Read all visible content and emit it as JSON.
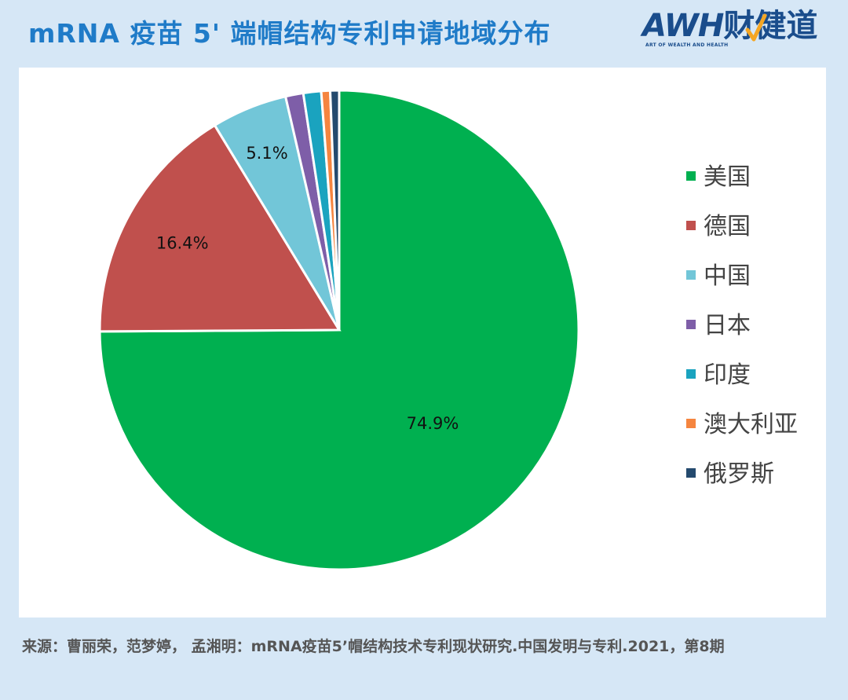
{
  "header": {
    "title": "mRNA 疫苗 5' 端帽结构专利申请地域分布"
  },
  "logo": {
    "main_latin": "AWH",
    "main_cn": "财健道",
    "tagline": "ART OF WEALTH AND HEALTH",
    "color": "#1a4d8c",
    "accent": "#f5a623"
  },
  "chart_data": {
    "type": "pie",
    "title": "mRNA 疫苗 5' 端帽结构专利申请地域分布",
    "start_angle_deg": 90,
    "direction": "clockwise",
    "legend_position": "right",
    "slices": [
      {
        "name": "美国",
        "value": 74.9,
        "color": "#00b050",
        "label": "74.9%"
      },
      {
        "name": "德国",
        "value": 16.4,
        "color": "#c0504d",
        "label": "16.4%"
      },
      {
        "name": "中国",
        "value": 5.1,
        "color": "#72c6d8",
        "label": "5.1%"
      },
      {
        "name": "日本",
        "value": 1.2,
        "color": "#7e5ea8",
        "label": ""
      },
      {
        "name": "印度",
        "value": 1.2,
        "color": "#1aa3bf",
        "label": ""
      },
      {
        "name": "澳大利亚",
        "value": 0.6,
        "color": "#f5853f",
        "label": ""
      },
      {
        "name": "俄罗斯",
        "value": 0.6,
        "color": "#244a6e",
        "label": ""
      }
    ]
  },
  "source": {
    "text": "来源：曹丽荣，范梦婷， 孟湘明：mRNA疫苗5’帽结构技术专利现状研究.中国发明与专利.2021，第8期"
  }
}
